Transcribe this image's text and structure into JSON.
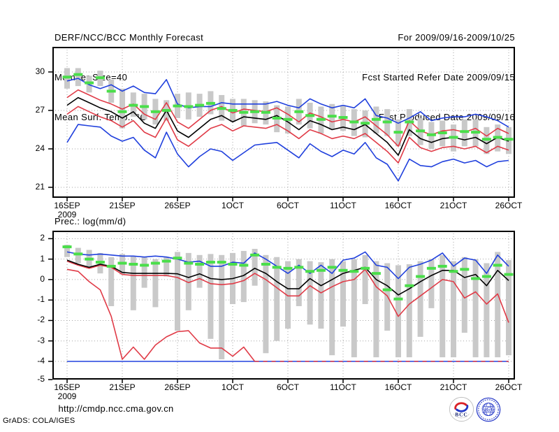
{
  "header": {
    "title": "DERF/NCC/BCC Monthly Forecast",
    "member_size": "Member Size=40",
    "top_var_label": "Mean Surf. Temp.: °C",
    "for_range": "For 2009/09/16-2009/10/25",
    "refer_date": "Fcst Started Refer Date 2009/09/15",
    "produced_date": "Fcst Produced Date 2009/09/16"
  },
  "footer": {
    "url": "http://cmdp.ncc.cma.gov.cn",
    "grads_credit": "GrADS: COLA/IGES",
    "bcc_logo_label": "BCC",
    "ncc_logo_label": "NCC"
  },
  "colors": {
    "blue": "#2040dd",
    "red": "#e03b47",
    "black": "#000000",
    "green": "#4ade4a",
    "bar_gray": "#c9c9c9",
    "grid": "#a6a6a6",
    "frame": "#000000"
  },
  "chart_data": [
    {
      "type": "line",
      "title": "Mean Surf. Temp.: °C",
      "xlabel": "",
      "ylabel": "°C",
      "grid": true,
      "xlim": [
        -1.33,
        40.57
      ],
      "ylim": [
        31.96,
        20.18
      ],
      "x_tick_days": [
        0,
        5,
        10,
        15,
        20,
        25,
        30,
        35,
        40
      ],
      "x_tick_labels": [
        "16SEP",
        "21SEP",
        "26SEP",
        "1OCT",
        "6OCT",
        "11OCT",
        "16OCT",
        "21OCT",
        "26OCT"
      ],
      "x_year_label": "2009",
      "yticks": [
        {
          "v": 30,
          "label": "30"
        },
        {
          "v": 27,
          "label": "27"
        },
        {
          "v": 24,
          "label": "24"
        },
        {
          "v": 21,
          "label": "21"
        }
      ],
      "series": [
        {
          "name": "gray-range-bar",
          "type": "bar",
          "color": "#c9c9c9",
          "lo": [
            28.7,
            28.9,
            28.4,
            28.9,
            27.6,
            25.6,
            26.5,
            26.3,
            25.9,
            26.2,
            26.4,
            26.3,
            26.5,
            26.7,
            26.2,
            26.1,
            25.8,
            26.0,
            25.9,
            25.3,
            25.2,
            25.9,
            25.6,
            25.2,
            25.5,
            25.4,
            25.0,
            24.9,
            25.2,
            25.0,
            24.2,
            25.0,
            24.3,
            24.0,
            24.2,
            23.8,
            24.2,
            24.2,
            23.6,
            23.8,
            23.6
          ],
          "hi": [
            30.3,
            30.3,
            29.7,
            30.1,
            29.4,
            28.7,
            28.4,
            28.3,
            27.9,
            27.8,
            28.3,
            28.4,
            28.3,
            28.5,
            28.2,
            27.9,
            27.9,
            27.8,
            27.7,
            27.4,
            27.3,
            27.9,
            27.6,
            27.3,
            27.5,
            27.4,
            27.1,
            27.0,
            27.3,
            27.1,
            26.3,
            27.1,
            26.4,
            26.1,
            26.2,
            25.9,
            26.3,
            26.3,
            25.7,
            25.9,
            25.7
          ]
        },
        {
          "name": "blue-lower-line",
          "type": "line",
          "color": "#2040dd",
          "values": [
            24.5,
            25.9,
            25.8,
            25.7,
            25.0,
            24.6,
            24.9,
            23.9,
            23.3,
            25.3,
            23.6,
            22.6,
            23.4,
            24.0,
            23.8,
            23.1,
            23.7,
            24.3,
            24.4,
            24.5,
            23.9,
            23.3,
            24.4,
            23.8,
            23.4,
            23.9,
            23.6,
            24.5,
            23.3,
            22.8,
            21.5,
            23.2,
            22.7,
            22.6,
            23.0,
            23.2,
            22.9,
            23.1,
            22.6,
            23.0,
            23.1
          ]
        },
        {
          "name": "blue-upper-line",
          "type": "line",
          "color": "#2040dd",
          "values": [
            29.3,
            29.5,
            29.0,
            28.7,
            29.0,
            28.5,
            28.9,
            28.4,
            28.3,
            29.4,
            27.5,
            27.2,
            27.3,
            27.3,
            27.6,
            27.5,
            27.5,
            27.5,
            27.5,
            27.7,
            27.4,
            27.2,
            27.9,
            27.5,
            27.2,
            27.4,
            27.2,
            27.9,
            26.6,
            26.4,
            26.0,
            26.4,
            26.9,
            26.2,
            26.4,
            26.5,
            26.5,
            26.7,
            26.5,
            26.2,
            25.7
          ]
        },
        {
          "name": "red-lower-line",
          "type": "line",
          "color": "#e03b47",
          "values": [
            26.7,
            27.3,
            26.9,
            26.5,
            26.2,
            25.7,
            26.2,
            25.3,
            24.9,
            26.4,
            24.7,
            24.2,
            24.9,
            25.6,
            25.9,
            25.4,
            25.8,
            25.7,
            25.6,
            25.9,
            25.4,
            24.8,
            25.5,
            25.2,
            24.8,
            25.0,
            24.8,
            25.2,
            24.5,
            23.8,
            22.9,
            24.9,
            24.1,
            23.8,
            24.1,
            24.2,
            24.0,
            24.2,
            23.7,
            24.2,
            23.9
          ]
        },
        {
          "name": "red-upper-line",
          "type": "line",
          "color": "#e03b47",
          "values": [
            28.0,
            28.6,
            28.2,
            27.8,
            27.5,
            27.1,
            27.5,
            26.7,
            26.3,
            27.6,
            26.1,
            25.6,
            26.3,
            27.0,
            27.3,
            26.8,
            27.1,
            27.0,
            26.9,
            27.2,
            26.7,
            26.1,
            26.8,
            26.5,
            26.1,
            26.3,
            26.1,
            26.5,
            25.8,
            25.1,
            24.2,
            26.2,
            25.4,
            25.1,
            25.4,
            25.5,
            25.3,
            25.6,
            25.0,
            25.6,
            25.2
          ]
        },
        {
          "name": "black-mean-line",
          "type": "line",
          "color": "#000000",
          "values": [
            27.4,
            28.0,
            27.6,
            27.2,
            26.9,
            26.4,
            26.9,
            26.0,
            25.6,
            27.0,
            25.4,
            24.9,
            25.6,
            26.3,
            26.6,
            26.1,
            26.5,
            26.4,
            26.3,
            26.6,
            26.1,
            25.5,
            26.2,
            25.9,
            25.5,
            25.7,
            25.5,
            25.9,
            25.2,
            24.5,
            23.5,
            25.5,
            24.8,
            24.5,
            24.8,
            24.9,
            24.7,
            24.9,
            24.4,
            24.9,
            24.6
          ]
        },
        {
          "name": "green-dash-marker",
          "type": "dash",
          "color": "#4ade4a",
          "values": [
            29.6,
            29.8,
            29.15,
            29.55,
            28.5,
            26.9,
            27.4,
            27.3,
            26.9,
            27.0,
            27.35,
            27.3,
            27.4,
            27.55,
            27.15,
            27.0,
            26.85,
            26.9,
            26.85,
            26.4,
            26.3,
            26.9,
            26.6,
            26.3,
            26.55,
            26.45,
            26.1,
            26.0,
            26.3,
            26.1,
            25.3,
            26.1,
            25.4,
            25.1,
            25.25,
            24.9,
            25.35,
            25.3,
            24.75,
            24.9,
            24.75
          ]
        }
      ]
    },
    {
      "type": "line",
      "title": "Prec.: log(mm/d)",
      "xlabel": "",
      "ylabel": "log(mm/d)",
      "grid": true,
      "xlim": [
        -1.33,
        40.57
      ],
      "ylim": [
        2.39,
        -4.89
      ],
      "x_tick_days": [
        0,
        5,
        10,
        15,
        20,
        25,
        30,
        35,
        40
      ],
      "x_tick_labels": [
        "16SEP",
        "21SEP",
        "26SEP",
        "1OCT",
        "6OCT",
        "11OCT",
        "16OCT",
        "21OCT",
        "26OCT"
      ],
      "x_year_label": "2009",
      "yticks": [
        {
          "v": 2,
          "label": "2"
        },
        {
          "v": 1,
          "label": "1"
        },
        {
          "v": 0,
          "label": "0"
        },
        {
          "v": -1,
          "label": "-1"
        },
        {
          "v": -2,
          "label": "-2"
        },
        {
          "v": -3,
          "label": "-3"
        },
        {
          "v": -4,
          "label": "-4"
        },
        {
          "v": -4.89,
          "label": "-5",
          "grid": false
        }
      ],
      "series": [
        {
          "name": "gray-range-bar",
          "type": "bar",
          "color": "#c9c9c9",
          "lo": [
            1.1,
            0.8,
            0.55,
            0.3,
            -1.3,
            0.25,
            -1.5,
            -0.4,
            -1.35,
            0.15,
            -2.5,
            -1.5,
            -0.4,
            -2.9,
            -3.9,
            -1.2,
            -1.1,
            -0.3,
            -3.6,
            -3.0,
            -2.4,
            -1.3,
            -2.2,
            -2.4,
            -3.7,
            -2.3,
            -3.8,
            -1.2,
            -3.8,
            -2.5,
            -3.8,
            -3.8,
            -2.8,
            -1.4,
            -3.8,
            -3.8,
            -2.6,
            -3.8,
            -3.8,
            -3.8,
            -3.7
          ],
          "hi": [
            1.7,
            1.55,
            1.45,
            1.3,
            1.1,
            1.25,
            1.15,
            1.1,
            1.0,
            1.1,
            1.35,
            1.3,
            1.2,
            1.25,
            1.2,
            1.3,
            1.4,
            1.5,
            1.2,
            1.1,
            0.9,
            1.0,
            0.9,
            0.85,
            1.0,
            0.9,
            1.0,
            1.2,
            0.9,
            0.8,
            0.7,
            0.75,
            0.9,
            1.0,
            1.2,
            0.9,
            1.1,
            1.0,
            0.8,
            1.35,
            0.95
          ]
        },
        {
          "name": "blue-lower-line",
          "type": "line",
          "color": "#2040dd",
          "values": [
            -4,
            -4,
            -4,
            -4,
            -4,
            -4,
            -4,
            -4,
            -4,
            -4,
            -4,
            -4,
            -4,
            -4,
            -4,
            -4,
            -4,
            -4,
            -4,
            -4,
            -4,
            -4,
            -4,
            -4,
            -4,
            -4,
            -4,
            -4,
            -4,
            -4,
            -4,
            -4,
            -4,
            -4,
            -4,
            -4,
            -4,
            -4,
            -4,
            -4,
            -4
          ]
        },
        {
          "name": "blue-upper-line",
          "type": "line",
          "color": "#2040dd",
          "values": [
            1.35,
            1.25,
            1.2,
            1.25,
            1.2,
            1.15,
            1.15,
            1.1,
            1.15,
            1.1,
            1.0,
            0.85,
            0.9,
            0.65,
            0.65,
            0.85,
            0.8,
            1.3,
            1.0,
            0.65,
            0.3,
            0.7,
            0.3,
            0.7,
            0.3,
            0.95,
            1.05,
            1.35,
            0.7,
            0.6,
            0.05,
            0.6,
            0.75,
            0.95,
            1.3,
            0.65,
            1.05,
            0.95,
            0.3,
            1.2,
            0.65
          ]
        },
        {
          "name": "red-lower-line",
          "type": "line",
          "color": "#e03b47",
          "values": [
            0.5,
            0.4,
            -0.1,
            -0.5,
            -1.8,
            -3.9,
            -3.3,
            -3.9,
            -3.2,
            -2.8,
            -2.55,
            -2.5,
            -3.1,
            -3.35,
            -3.35,
            -3.75,
            -3.3,
            -4,
            null,
            null,
            null,
            null,
            null,
            null,
            null,
            null,
            null,
            null,
            null,
            null,
            null,
            null,
            null,
            null,
            null,
            null,
            null,
            null,
            null,
            null,
            null
          ]
        },
        {
          "name": "red-lower-floor-dashed",
          "type": "line",
          "color": "#e03b47",
          "dasharray": "6 6",
          "values": [
            null,
            null,
            null,
            null,
            null,
            null,
            null,
            null,
            null,
            null,
            null,
            null,
            null,
            null,
            null,
            null,
            null,
            -4,
            -4,
            -4,
            -4,
            -4,
            -4,
            -4,
            -4,
            -4,
            -4,
            -4,
            -4,
            -4,
            -4,
            -4,
            -4,
            -4,
            -4,
            -4,
            -4,
            -4,
            -4,
            -4,
            -4
          ]
        },
        {
          "name": "red-middle-line",
          "type": "line",
          "color": "#e03b47",
          "values": [
            0.9,
            0.7,
            0.55,
            0.7,
            0.6,
            0.25,
            0.2,
            0.2,
            0.2,
            0.2,
            0.1,
            -0.15,
            0.05,
            -0.2,
            -0.25,
            -0.2,
            -0.05,
            0.3,
            0.0,
            -0.4,
            -0.8,
            -0.8,
            -0.3,
            -0.65,
            -0.35,
            -0.1,
            0.0,
            0.5,
            -0.35,
            -0.8,
            -1.8,
            -1.2,
            -0.8,
            -0.4,
            0.0,
            -0.1,
            -0.9,
            -0.6,
            -1.2,
            -0.7,
            -2.1
          ]
        },
        {
          "name": "black-mean-line",
          "type": "line",
          "color": "#000000",
          "values": [
            0.95,
            0.75,
            0.6,
            0.75,
            0.65,
            0.35,
            0.3,
            0.3,
            0.3,
            0.3,
            0.28,
            0.1,
            0.28,
            0.05,
            0.0,
            0.05,
            0.2,
            0.55,
            0.3,
            -0.1,
            -0.45,
            -0.45,
            0.05,
            -0.3,
            0.0,
            0.3,
            0.45,
            0.6,
            0.0,
            -0.3,
            -0.75,
            -0.45,
            -0.1,
            0.2,
            0.45,
            0.45,
            0.1,
            0.25,
            -0.3,
            0.45,
            -0.05
          ]
        },
        {
          "name": "green-dash-marker",
          "type": "dash",
          "color": "#4ade4a",
          "values": [
            1.6,
            1.25,
            1.0,
            0.85,
            0.65,
            0.8,
            0.75,
            0.7,
            0.8,
            0.9,
            1.05,
            0.8,
            0.75,
            0.85,
            0.85,
            0.75,
            0.7,
            1.2,
            0.75,
            0.6,
            0.55,
            0.6,
            0.4,
            0.45,
            0.6,
            0.45,
            0.4,
            0.55,
            0.3,
            -0.5,
            -0.95,
            -0.3,
            0.15,
            0.55,
            0.65,
            0.4,
            0.5,
            0.05,
            0.15,
            0.7,
            0.25
          ]
        }
      ]
    }
  ]
}
